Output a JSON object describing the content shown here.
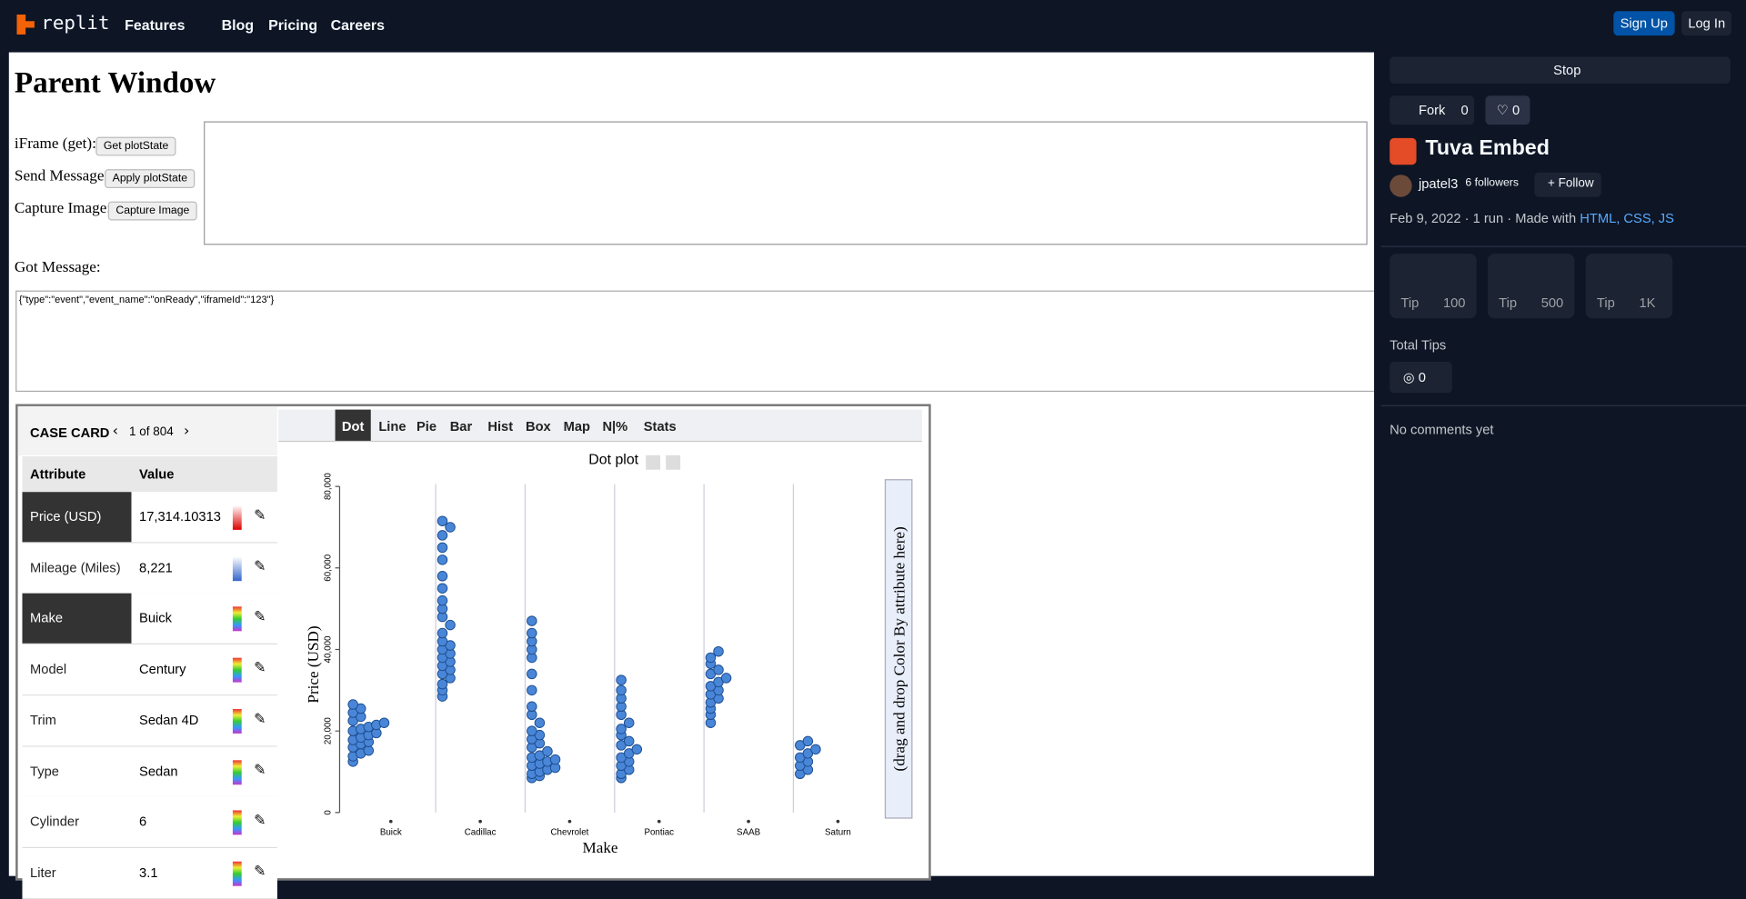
{
  "nav": {
    "logo": "replit",
    "links": [
      "Features",
      "Blog",
      "Pricing",
      "Careers"
    ],
    "signup": "Sign Up",
    "login": "Log In"
  },
  "parent": {
    "title": "Parent Window",
    "rows": [
      {
        "label": "iFrame (get):",
        "button": "Get plotState"
      },
      {
        "label": "Send Message:",
        "button": "Apply plotState"
      },
      {
        "label": "Capture Image:",
        "button": "Capture Image"
      }
    ],
    "got": "Got Message:",
    "message": "{\"type\":\"event\",\"event_name\":\"onReady\",\"iframeId\":\"123\"}"
  },
  "case_card": {
    "title": "CASE CARD",
    "position": "1 of 804",
    "columns": [
      "Attribute",
      "Value"
    ],
    "rows": [
      [
        "Price (USD)",
        "17,314.10313"
      ],
      [
        "Mileage (Miles)",
        "8,221"
      ],
      [
        "Make",
        "Buick"
      ],
      [
        "Model",
        "Century"
      ],
      [
        "Trim",
        "Sedan 4D"
      ],
      [
        "Type",
        "Sedan"
      ],
      [
        "Cylinder",
        "6"
      ],
      [
        "Liter",
        "3.1"
      ]
    ]
  },
  "toolbar": [
    "Dot",
    "Line",
    "Pie",
    "Bar",
    "Hist",
    "Box",
    "Map",
    "N|%",
    "Stats"
  ],
  "chart_data": {
    "type": "dot",
    "title": "Dot plot",
    "ylabel": "Price (USD)",
    "xlabel": "Make",
    "color": "#4a86d8",
    "drop_hint": "(drag and drop Color By attribute here)",
    "categories": [
      "Buick",
      "Cadillac",
      "Chevrolet",
      "Pontiac",
      "SAAB",
      "Saturn"
    ],
    "values": [
      [
        12500,
        13800,
        14500,
        15200,
        16000,
        16800,
        17314,
        17800,
        18400,
        19000,
        19500,
        20000,
        20500,
        21000,
        21500,
        22000,
        22500,
        23500,
        24500,
        25500,
        26500
      ],
      [
        28500,
        30000,
        31500,
        33000,
        34000,
        35000,
        36000,
        37000,
        38000,
        39000,
        40000,
        41000,
        42000,
        44000,
        46000,
        48000,
        50000,
        52000,
        55000,
        58000,
        62000,
        65000,
        68000,
        70000,
        71500
      ],
      [
        8500,
        9000,
        9500,
        10000,
        10500,
        11000,
        11500,
        12000,
        12500,
        13000,
        13500,
        14000,
        15000,
        16000,
        17000,
        18000,
        19000,
        20000,
        22000,
        24000,
        26000,
        30000,
        34000,
        38000,
        40000,
        42000,
        44000,
        47000
      ],
      [
        8500,
        9500,
        10500,
        11500,
        12500,
        13500,
        14500,
        15500,
        16500,
        17500,
        19000,
        20500,
        22000,
        24000,
        26000,
        28000,
        30000,
        32500
      ],
      [
        22000,
        24000,
        25500,
        27000,
        28000,
        29000,
        30000,
        31000,
        32000,
        33000,
        34000,
        35000,
        36500,
        38000,
        39500
      ],
      [
        9500,
        10500,
        11500,
        12500,
        13500,
        14500,
        15500,
        16500,
        17500
      ]
    ],
    "ylim": [
      0,
      80000
    ],
    "yticks": [
      0,
      {
        "value": 20000,
        "label": "20,000"
      },
      {
        "value": 40000,
        "label": "40,000"
      },
      {
        "value": 60000,
        "label": "60,000"
      },
      {
        "value": 80000,
        "label": "80,000"
      }
    ]
  },
  "sidebar": {
    "stop": "Stop",
    "fork": "Fork",
    "forks": "0",
    "likes": "0",
    "title": "Tuva Embed",
    "user": "jpatel3",
    "followers": "6 followers",
    "follow": "Follow",
    "meta": "Feb 9, 2022 · 1 run · Made with",
    "langs": "HTML, CSS, JS",
    "tips": [
      {
        "label": "Tip",
        "amount": "100"
      },
      {
        "label": "Tip",
        "amount": "500"
      },
      {
        "label": "Tip",
        "amount": "1K"
      }
    ],
    "total_label": "Total Tips",
    "total": "0",
    "comments": "No comments yet"
  }
}
